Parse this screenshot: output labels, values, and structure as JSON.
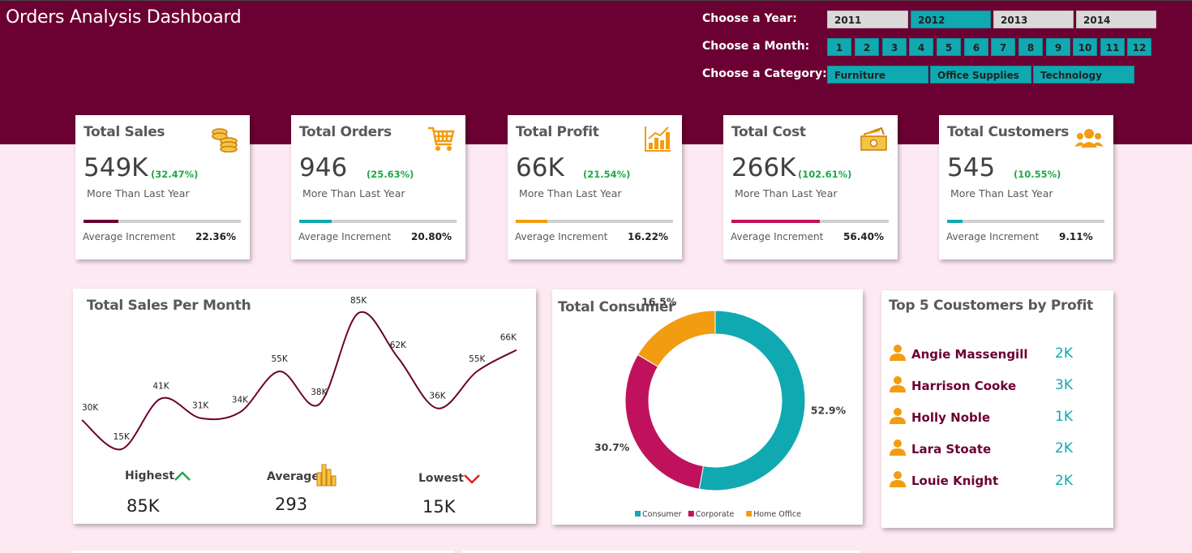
{
  "header": {
    "title": "Orders Analysis Dashboard",
    "year_label": "Choose a Year:",
    "month_label": "Choose a Month:",
    "category_label": "Choose a Category:",
    "years": [
      {
        "label": "2011",
        "selected": false
      },
      {
        "label": "2012",
        "selected": true
      },
      {
        "label": "2013",
        "selected": false
      },
      {
        "label": "2014",
        "selected": false
      }
    ],
    "months": [
      "1",
      "2",
      "3",
      "4",
      "5",
      "6",
      "7",
      "8",
      "9",
      "10",
      "11",
      "12"
    ],
    "categories": [
      "Furniture",
      "Office Supplies",
      "Technology"
    ]
  },
  "kpis": [
    {
      "title": "Total Sales",
      "value": "549K",
      "pct": "(32.47%)",
      "sub": "More Than Last Year",
      "avg_label": "Average Increment",
      "avg_value": "22.36%",
      "progress": 0.2236,
      "color": "#6b0033",
      "icon": "coins-icon"
    },
    {
      "title": "Total Orders",
      "value": "946",
      "pct": "(25.63%)",
      "sub": "More Than Last Year",
      "avg_label": "Average Increment",
      "avg_value": "20.80%",
      "progress": 0.208,
      "color": "#10a9b2",
      "icon": "shopping-cart-icon"
    },
    {
      "title": "Total Profit",
      "value": "66K",
      "pct": "(21.54%)",
      "sub": "More Than Last Year",
      "avg_label": "Average Increment",
      "avg_value": "16.22%",
      "progress": 0.2,
      "color": "#f29c11",
      "icon": "bar-growth-icon"
    },
    {
      "title": "Total Cost",
      "value": "266K",
      "pct": "(102.61%)",
      "sub": "More Than Last Year",
      "avg_label": "Average Increment",
      "avg_value": "56.40%",
      "progress": 0.564,
      "color": "#c0125c",
      "icon": "cash-icon"
    },
    {
      "title": "Total Customers",
      "value": "545",
      "pct": "(10.55%)",
      "sub": "More Than Last Year",
      "avg_label": "Average Increment",
      "avg_value": "9.11%",
      "progress": 0.1,
      "color": "#10a9b2",
      "icon": "customers-icon"
    }
  ],
  "sales_panel": {
    "title": "Total Sales Per Month",
    "highest_label": "Highest",
    "highest_value": "85K",
    "average_label": "Average",
    "average_value": "293",
    "lowest_label": "Lowest",
    "lowest_value": "15K"
  },
  "consumer_panel": {
    "title": "Total Consumer"
  },
  "top_customers": {
    "title": "Top 5 Coustomers by Profit",
    "items": [
      {
        "name": "Angie Massengill",
        "value": "2K"
      },
      {
        "name": "Harrison Cooke",
        "value": "3K"
      },
      {
        "name": "Holly Noble",
        "value": "1K"
      },
      {
        "name": "Lara Stoate",
        "value": "2K"
      },
      {
        "name": "Louie Knight",
        "value": "2K"
      }
    ]
  },
  "chart_data": [
    {
      "type": "line",
      "title": "Total Sales Per Month",
      "x": [
        1,
        2,
        3,
        4,
        5,
        6,
        7,
        8,
        9,
        10,
        11,
        12
      ],
      "values": [
        30,
        15,
        41,
        31,
        34,
        55,
        38,
        85,
        62,
        36,
        55,
        66
      ],
      "labels": [
        "30K",
        "15K",
        "41K",
        "31K",
        "34K",
        "55K",
        "38K",
        "85K",
        "62K",
        "36K",
        "55K",
        "66K"
      ],
      "line_color": "#6b0033",
      "smooth": true,
      "grid": false
    },
    {
      "type": "pie",
      "title": "Total Consumer",
      "donut": true,
      "slices": [
        {
          "name": "Consumer",
          "value": 52.9,
          "label": "52.9%",
          "color": "#10a9b2"
        },
        {
          "name": "Corporate",
          "value": 30.7,
          "label": "30.7%",
          "color": "#c0125c"
        },
        {
          "name": "Home Office",
          "value": 16.5,
          "label": "16.5%",
          "color": "#f29c11"
        }
      ],
      "legend": "bottom"
    }
  ]
}
